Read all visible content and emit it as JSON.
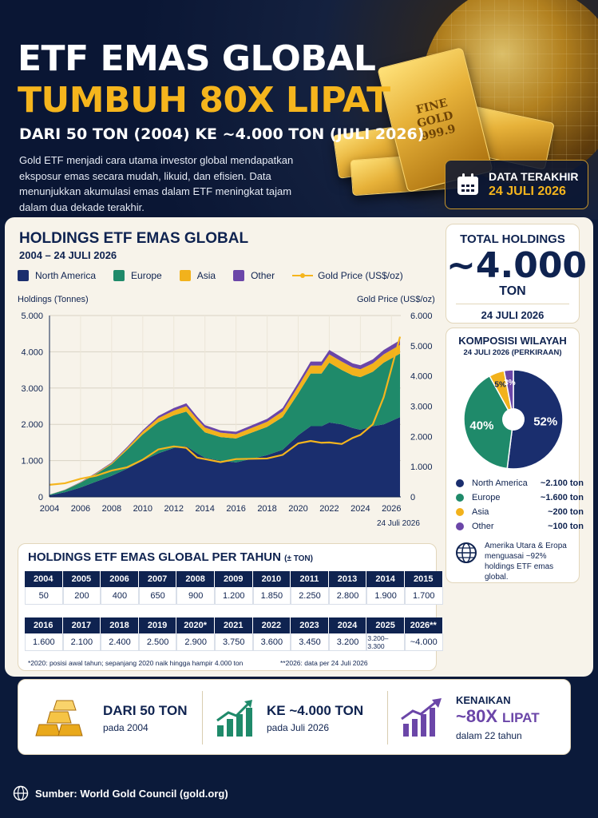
{
  "hero": {
    "title_line1": "ETF EMAS GLOBAL",
    "title_line2": "TUMBUH 80X LIPAT",
    "subtitle": "DARI 50 TON (2004) KE ~4.000 TON (JULI 2026)",
    "intro": "Gold ETF menjadi cara utama investor global mendapatkan eksposur emas secara mudah, likuid, dan efisien. Data menunjukkan akumulasi emas dalam ETF meningkat tajam dalam dua dekade terakhir.",
    "gold_bar_text": "FINE\nGOLD\n999.9",
    "date_label": "DATA TERAKHIR",
    "date_value": "24 JULI 2026",
    "icon": "calendar-icon"
  },
  "colors": {
    "north_america": "#1a2e6e",
    "europe": "#1f8a6a",
    "asia": "#f2b21c",
    "other": "#6b46a8",
    "gold_line": "#f5b51d",
    "navy": "#0f2350"
  },
  "chart_data": [
    {
      "type": "area",
      "title": "HOLDINGS ETF EMAS GLOBAL",
      "subtitle": "2004 – 24 JULI 2026",
      "ylabel": "Holdings (Tonnes)",
      "y2label": "Gold Price (US$/oz)",
      "ylim": [
        0,
        5000
      ],
      "y2lim": [
        0,
        6000
      ],
      "yticks": [
        "0",
        "1.000",
        "2.000",
        "3.000",
        "4.000",
        "5.000"
      ],
      "y2ticks": [
        "0",
        "1.000",
        "2.000",
        "3.000",
        "4.000",
        "5.000",
        "6.000"
      ],
      "xticks": [
        "2004",
        "2006",
        "2008",
        "2010",
        "2012",
        "2014",
        "2016",
        "2018",
        "2020",
        "2022",
        "2024",
        "2026"
      ],
      "x_end_note": "24 Juli 2026",
      "grid": true,
      "legend": [
        "North America",
        "Europe",
        "Asia",
        "Other",
        "Gold Price (US$/oz)"
      ],
      "x": [
        2004,
        2005,
        2006,
        2007,
        2008,
        2009,
        2010,
        2011,
        2012,
        2012.8,
        2013.5,
        2014,
        2015,
        2016,
        2017,
        2018,
        2019,
        2020,
        2020.8,
        2021.5,
        2022,
        2022.8,
        2023.5,
        2024,
        2024.8,
        2025.5,
        2026.55
      ],
      "series": [
        {
          "name": "North America",
          "values": [
            40,
            130,
            260,
            420,
            580,
            780,
            1000,
            1200,
            1350,
            1400,
            1200,
            1080,
            1000,
            950,
            1050,
            1150,
            1300,
            1700,
            1950,
            1950,
            2050,
            2000,
            1900,
            1850,
            1950,
            2000,
            2200
          ]
        },
        {
          "name": "Europe",
          "values": [
            20,
            60,
            130,
            210,
            320,
            520,
            720,
            860,
            900,
            950,
            800,
            700,
            650,
            660,
            720,
            780,
            900,
            1150,
            1450,
            1450,
            1650,
            1500,
            1450,
            1450,
            1500,
            1700,
            1750
          ]
        },
        {
          "name": "Asia",
          "values": [
            0,
            5,
            10,
            20,
            30,
            50,
            80,
            110,
            130,
            150,
            140,
            130,
            120,
            120,
            130,
            140,
            160,
            200,
            220,
            220,
            230,
            230,
            220,
            220,
            230,
            230,
            240
          ]
        },
        {
          "name": "Other",
          "values": [
            0,
            5,
            10,
            15,
            20,
            30,
            40,
            60,
            70,
            80,
            75,
            70,
            65,
            65,
            70,
            80,
            90,
            100,
            110,
            110,
            120,
            120,
            110,
            110,
            110,
            120,
            130
          ]
        },
        {
          "name": "Gold Price (US$/oz)",
          "values": [
            400,
            450,
            600,
            700,
            870,
            980,
            1230,
            1570,
            1670,
            1620,
            1300,
            1250,
            1150,
            1250,
            1260,
            1270,
            1390,
            1770,
            1850,
            1790,
            1800,
            1750,
            1950,
            2050,
            2400,
            3300,
            5300
          ]
        }
      ]
    },
    {
      "type": "pie",
      "title": "KOMPOSISI WILAYAH",
      "subtitle": "24 JULI 2026 (PERKIRAAN)",
      "categories": [
        "North America",
        "Europe",
        "Asia",
        "Other"
      ],
      "values": [
        52,
        40,
        5,
        3
      ],
      "labels": [
        "52%",
        "40%",
        "5%",
        "3%"
      ],
      "amounts": [
        "~2.100 ton",
        "~1.600 ton",
        "~200 ton",
        "~100 ton"
      ]
    },
    {
      "type": "table",
      "title": "HOLDINGS ETF EMAS GLOBAL PER TAHUN",
      "title_note": "(± TON)",
      "row1_years": [
        "2004",
        "2005",
        "2006",
        "2007",
        "2008",
        "2009",
        "2010",
        "2011",
        "2013",
        "2014",
        "2015"
      ],
      "row1_values": [
        "50",
        "200",
        "400",
        "650",
        "900",
        "1.200",
        "1.850",
        "2.250",
        "2.800",
        "1.900",
        "1.700"
      ],
      "row2_years": [
        "2016",
        "2017",
        "2018",
        "2019",
        "2020*",
        "2021",
        "2022",
        "2023",
        "2024",
        "2025",
        "2026**"
      ],
      "row2_values": [
        "1.600",
        "2.100",
        "2.400",
        "2.500",
        "2.900",
        "3.750",
        "3.600",
        "3.450",
        "3.200",
        "3.200–3.300",
        "~4.000"
      ],
      "footnote1": "*2020: posisi awal tahun; sepanjang 2020 naik hingga hampir 4.000 ton",
      "footnote2": "**2026: data per 24 Juli 2026"
    }
  ],
  "total": {
    "title": "TOTAL HOLDINGS",
    "value": "~4.000",
    "unit": "TON",
    "date": "24 JULI 2026"
  },
  "composition_note": "Amerika Utara & Eropa menguasai ~92% holdings ETF emas global.",
  "stats": [
    {
      "big": "DARI 50 TON",
      "small": "pada 2004",
      "icon": "gold-bars-icon"
    },
    {
      "big": "KE ~4.000 TON",
      "small": "pada Juli 2026",
      "icon": "growth-chart-icon"
    },
    {
      "top": "KENAIKAN",
      "big": "~80X",
      "big2": "LIPAT",
      "small": "dalam 22 tahun",
      "icon": "trend-up-icon"
    }
  ],
  "footer": {
    "source": "Sumber: World Gold Council (gold.org)",
    "icon": "globe-icon"
  }
}
